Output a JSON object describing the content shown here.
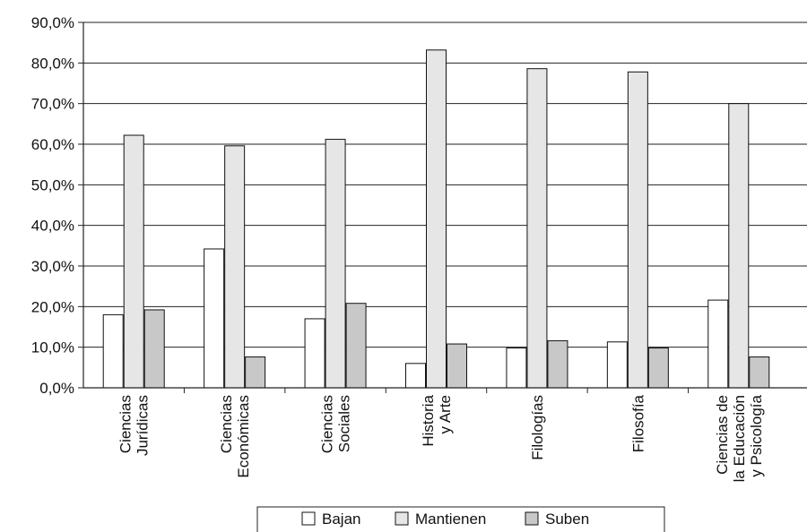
{
  "chart_data": {
    "type": "bar",
    "title": "",
    "xlabel": "",
    "ylabel": "",
    "ylim": [
      0,
      90
    ],
    "yticks": [
      "0,0%",
      "10,0%",
      "20,0%",
      "30,0%",
      "40,0%",
      "50,0%",
      "60,0%",
      "70,0%",
      "80,0%",
      "90,0%"
    ],
    "categories": [
      [
        "Ciencias",
        "Jurídicas"
      ],
      [
        "Ciencias",
        "Económicas"
      ],
      [
        "Ciencias",
        "Sociales"
      ],
      [
        "Historia",
        "y Arte"
      ],
      [
        "Filologías"
      ],
      [
        "Filosofía"
      ],
      [
        "Ciencias de",
        "la Educación",
        "y Psicología"
      ]
    ],
    "series": [
      {
        "name": "Bajan",
        "color": "#ffffff",
        "values": [
          18.0,
          34.2,
          17.0,
          6.0,
          9.8,
          11.3,
          21.6
        ]
      },
      {
        "name": "Mantienen",
        "color": "#e6e6e6",
        "values": [
          62.2,
          59.6,
          61.2,
          83.2,
          78.6,
          77.8,
          70.0
        ]
      },
      {
        "name": "Suben",
        "color": "#c8c8c8",
        "values": [
          19.2,
          7.6,
          20.8,
          10.8,
          11.6,
          9.8,
          7.6
        ]
      }
    ],
    "grid": true,
    "legend_position": "bottom"
  }
}
